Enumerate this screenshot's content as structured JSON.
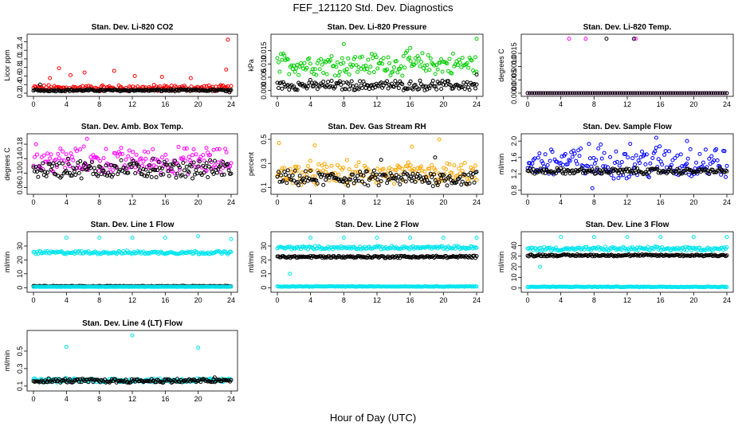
{
  "title": "FEF_121120  Std. Dev. Diagnostics",
  "xlabel": "Hour of Day (UTC)",
  "colors": {
    "co2": "#ff0000",
    "pressure": "#00cc00",
    "temp": "#ff00ff",
    "box": "#ff00ff",
    "rh": "#ffa500",
    "flow": "#0000ff",
    "lines": "#00e5ee",
    "ref": "#000000"
  },
  "chart_data": [
    {
      "type": "scatter",
      "title": "Stan. Dev. Li-820 CO2",
      "ylabel": "Licor ppm",
      "xlim": [
        0,
        24
      ],
      "ylim": [
        0.2,
        1.5
      ],
      "xticks": [
        0,
        4,
        8,
        12,
        16,
        20,
        24
      ],
      "yticks": [
        "0.2",
        "0.4",
        "0.6",
        "0.8",
        "1.0",
        "1.2",
        "1.4"
      ],
      "yvals": [
        0.2,
        0.4,
        0.6,
        0.8,
        1.0,
        1.2,
        1.4
      ],
      "series": [
        {
          "color": "#ff0000",
          "base": 0.3,
          "spread": 0.06,
          "outliers": [
            [
              2,
              0.55
            ],
            [
              3.1,
              0.78
            ],
            [
              4.5,
              0.62
            ],
            [
              6.2,
              0.68
            ],
            [
              9.8,
              0.72
            ],
            [
              12.3,
              0.6
            ],
            [
              15.6,
              0.58
            ],
            [
              19.1,
              0.55
            ],
            [
              23.4,
              0.75
            ],
            [
              23.6,
              1.45
            ]
          ]
        },
        {
          "color": "#000000",
          "base": 0.26,
          "spread": 0.02,
          "outliers": [
            [
              0.8,
              0.4
            ],
            [
              23.8,
              0.22
            ]
          ]
        }
      ]
    },
    {
      "type": "scatter",
      "title": "Stan. Dev. Li-820 Pressure",
      "ylabel": "kPa",
      "xlim": [
        0,
        24
      ],
      "ylim": [
        -0.001,
        0.02
      ],
      "xticks": [
        0,
        4,
        8,
        12,
        16,
        20,
        24
      ],
      "yticks": [
        "0.000",
        "0.005",
        "0.010",
        "0.015"
      ],
      "yvals": [
        0,
        0.005,
        0.01,
        0.015
      ],
      "series": [
        {
          "color": "#00cc00",
          "base": 0.009,
          "spread": 0.0035,
          "outliers": [
            [
              8,
              0.0175
            ],
            [
              16,
              0.016
            ],
            [
              24,
              0.0195
            ]
          ]
        },
        {
          "color": "#000000",
          "base": 0.0015,
          "spread": 0.0015,
          "outliers": [
            [
              24,
              0.006
            ]
          ]
        }
      ]
    },
    {
      "type": "scatter",
      "title": "Stan. Dev. Li-820 Temp.",
      "ylabel": "degrees C",
      "xlim": [
        0,
        24
      ],
      "ylim": [
        0,
        0.0021
      ],
      "xticks": [
        0,
        4,
        8,
        12,
        16,
        20,
        24
      ],
      "yticks": [
        "0.0000",
        "0.0005",
        "0.0010",
        "0.0015"
      ],
      "yvals": [
        0,
        0.0005,
        0.001,
        0.0015
      ],
      "series": [
        {
          "color": "#ff00ff",
          "base": 0,
          "spread": 0,
          "outliers": [
            [
              5,
              0.00205
            ],
            [
              7,
              0.00205
            ],
            [
              13,
              0.00205
            ]
          ]
        },
        {
          "color": "#000000",
          "base": 0,
          "spread": 0,
          "outliers": [
            [
              9.5,
              0.00205
            ],
            [
              12.8,
              0.00205
            ]
          ]
        }
      ]
    },
    {
      "type": "scatter",
      "title": "Stan. Dev. Amb. Box Temp.",
      "ylabel": "degrees C",
      "xlim": [
        0,
        24
      ],
      "ylim": [
        0.05,
        0.2
      ],
      "xticks": [
        0,
        4,
        8,
        12,
        16,
        20,
        24
      ],
      "yticks": [
        "0.06",
        "0.10",
        "0.14",
        "0.18"
      ],
      "yvals": [
        0.06,
        0.1,
        0.14,
        0.18
      ],
      "series": [
        {
          "color": "#ff00ff",
          "base": 0.125,
          "spread": 0.03,
          "outliers": [
            [
              6.5,
              0.195
            ],
            [
              0.3,
              0.18
            ],
            [
              21,
              0.17
            ]
          ]
        },
        {
          "color": "#000000",
          "base": 0.105,
          "spread": 0.02,
          "outliers": [
            [
              4.2,
              0.14
            ],
            [
              14.5,
              0.14
            ]
          ]
        }
      ]
    },
    {
      "type": "scatter",
      "title": "Stan. Dev. Gas Stream RH",
      "ylabel": "percent",
      "xlim": [
        0,
        24
      ],
      "ylim": [
        0.07,
        0.52
      ],
      "xticks": [
        0,
        4,
        8,
        12,
        16,
        20,
        24
      ],
      "yticks": [
        "0.1",
        "0.3",
        "0.5"
      ],
      "yvals": [
        0.1,
        0.3,
        0.5
      ],
      "series": [
        {
          "color": "#ffa500",
          "base": 0.19,
          "spread": 0.08,
          "outliers": [
            [
              0.2,
              0.47
            ],
            [
              4.5,
              0.45
            ],
            [
              16.2,
              0.44
            ],
            [
              19.5,
              0.5
            ]
          ]
        },
        {
          "color": "#000000",
          "base": 0.16,
          "spread": 0.05,
          "outliers": [
            [
              12.5,
              0.33
            ],
            [
              19,
              0.35
            ]
          ]
        }
      ]
    },
    {
      "type": "scatter",
      "title": "Stan. Dev. Sample Flow",
      "ylabel": "ml/min",
      "xlim": [
        0,
        24
      ],
      "ylim": [
        0.78,
        2.1
      ],
      "xticks": [
        0,
        4,
        8,
        12,
        16,
        20,
        24
      ],
      "yticks": [
        "0.8",
        "1.2",
        "1.6",
        "2.0"
      ],
      "yvals": [
        0.8,
        1.2,
        1.6,
        2.0
      ],
      "series": [
        {
          "color": "#0000ff",
          "base": 1.4,
          "spread": 0.35,
          "outliers": [
            [
              15.5,
              2.08
            ],
            [
              7.8,
              0.85
            ],
            [
              19.2,
              2.0
            ]
          ]
        },
        {
          "color": "#000000",
          "base": 1.25,
          "spread": 0.06,
          "outliers": []
        }
      ]
    },
    {
      "type": "scatter",
      "title": "Stan. Dev. Line 1 Flow",
      "ylabel": "ml/min",
      "xlim": [
        0,
        24
      ],
      "ylim": [
        -1,
        38
      ],
      "xticks": [
        0,
        4,
        8,
        12,
        16,
        20,
        24
      ],
      "yticks": [
        "0",
        "10",
        "20",
        "30"
      ],
      "yvals": [
        0,
        10,
        20,
        30
      ],
      "series": [
        {
          "color": "#00e5ee",
          "base": 25,
          "spread": 1,
          "outliers": [
            [
              4,
              36
            ],
            [
              8,
              36
            ],
            [
              12,
              36
            ],
            [
              16,
              36
            ],
            [
              20,
              37
            ],
            [
              24,
              35
            ]
          ]
        },
        {
          "color": "#000000",
          "base": 1,
          "spread": 0.2,
          "outliers": []
        },
        {
          "color": "#00e5ee",
          "base": 0.6,
          "spread": 0.1,
          "outliers": []
        }
      ]
    },
    {
      "type": "scatter",
      "title": "Stan. Dev. Line 2 Flow",
      "ylabel": "ml/min",
      "xlim": [
        0,
        24
      ],
      "ylim": [
        -1,
        38
      ],
      "xticks": [
        0,
        4,
        8,
        12,
        16,
        20,
        24
      ],
      "yticks": [
        "0",
        "10",
        "20",
        "30"
      ],
      "yvals": [
        0,
        10,
        20,
        30
      ],
      "series": [
        {
          "color": "#00e5ee",
          "base": 28.5,
          "spread": 1,
          "outliers": [
            [
              4,
              36
            ],
            [
              8,
              36
            ],
            [
              12,
              36
            ],
            [
              16,
              36
            ],
            [
              20,
              36
            ],
            [
              24,
              36
            ],
            [
              1.5,
              10
            ]
          ]
        },
        {
          "color": "#000000",
          "base": 22,
          "spread": 0.7,
          "outliers": []
        },
        {
          "color": "#00e5ee",
          "base": 0.8,
          "spread": 0.2,
          "outliers": []
        }
      ]
    },
    {
      "type": "scatter",
      "title": "Stan. Dev. Line 3 Flow",
      "ylabel": "ml/min",
      "xlim": [
        0,
        24
      ],
      "ylim": [
        -1,
        50
      ],
      "xticks": [
        0,
        4,
        8,
        12,
        16,
        20,
        24
      ],
      "yticks": [
        "0",
        "10",
        "20",
        "30",
        "40"
      ],
      "yvals": [
        0,
        10,
        20,
        30,
        40
      ],
      "series": [
        {
          "color": "#00e5ee",
          "base": 36.5,
          "spread": 1.5,
          "outliers": [
            [
              4,
              48
            ],
            [
              8,
              48
            ],
            [
              12,
              48
            ],
            [
              16,
              48
            ],
            [
              20,
              48
            ],
            [
              24,
              48
            ],
            [
              1.5,
              20
            ]
          ]
        },
        {
          "color": "#000000",
          "base": 30.5,
          "spread": 0.8,
          "outliers": []
        },
        {
          "color": "#00e5ee",
          "base": 1,
          "spread": 0.3,
          "outliers": []
        }
      ]
    },
    {
      "type": "scatter",
      "title": "Stan. Dev. Line 4 (LT) Flow",
      "ylabel": "ml/min",
      "xlim": [
        0,
        24
      ],
      "ylim": [
        0.08,
        0.7
      ],
      "xticks": [
        0,
        4,
        8,
        12,
        16,
        20,
        24
      ],
      "yticks": [
        "0.1",
        "0.3",
        "0.5"
      ],
      "yvals": [
        0.1,
        0.3,
        0.5
      ],
      "series": [
        {
          "color": "#00e5ee",
          "base": 0.16,
          "spread": 0.02,
          "outliers": [
            [
              4,
              0.55
            ],
            [
              12,
              0.68
            ],
            [
              20,
              0.54
            ]
          ]
        },
        {
          "color": "#000000",
          "base": 0.155,
          "spread": 0.02,
          "outliers": [
            [
              22,
              0.2
            ]
          ]
        }
      ]
    }
  ]
}
